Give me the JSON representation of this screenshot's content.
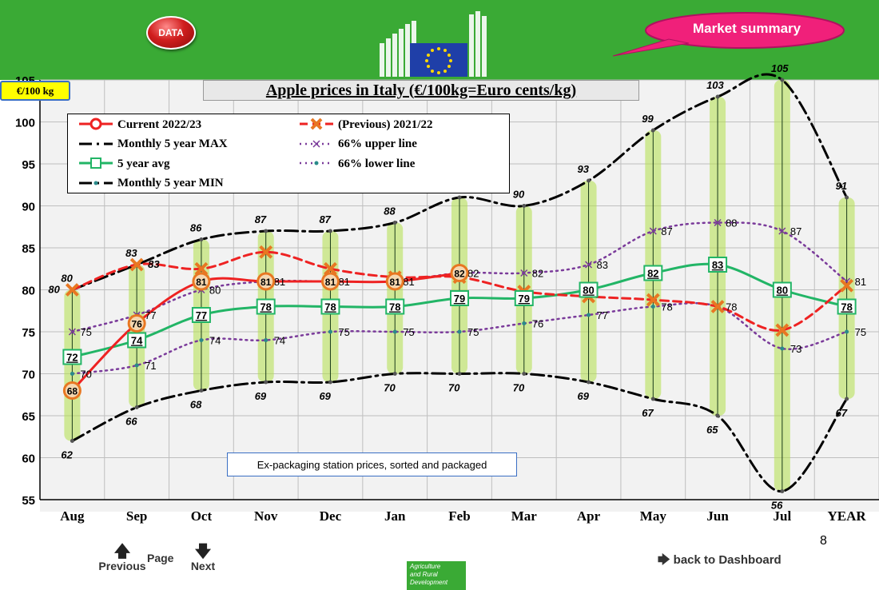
{
  "header": {
    "data_button": "DATA",
    "market_summary": "Market summary"
  },
  "unit_label": "€/100 kg",
  "note": "Ex-packaging station prices, sorted and packaged",
  "page_number": "8",
  "nav": {
    "previous": "Previous",
    "page": "Page",
    "next": "Next",
    "back": "back to Dashboard"
  },
  "footer_logo": [
    "Agriculture",
    "and Rural",
    "Development"
  ],
  "colors": {
    "banner": "#3aaa35",
    "current": "#ee2222",
    "previous": "#ee2222",
    "max_min": "#000000",
    "avg": "#22b566",
    "upper_lower": "#7a3a9a",
    "range_bar": "#b3e04a"
  },
  "icons": {
    "previous": "arrow-up-icon",
    "next": "arrow-down-icon",
    "back": "arrow-right-icon"
  },
  "chart_data": {
    "type": "line",
    "title": "Apple prices in Italy (€/100kg=Euro cents/kg)",
    "ylim": [
      55,
      105
    ],
    "yticks": [
      55,
      60,
      65,
      70,
      75,
      80,
      85,
      90,
      95,
      100,
      105
    ],
    "categories": [
      "Aug",
      "Sep",
      "Oct",
      "Nov",
      "Dec",
      "Jan",
      "Feb",
      "Mar",
      "Apr",
      "May",
      "Jun",
      "Jul",
      "YEAR"
    ],
    "grid": true,
    "legend_position": "top-left",
    "series": [
      {
        "name": "Current 2022/23",
        "values": [
          68,
          76,
          81,
          81,
          81,
          81,
          82,
          null,
          null,
          null,
          null,
          null,
          null
        ]
      },
      {
        "name": "(Previous) 2021/22",
        "values": [
          80,
          83,
          82.5,
          84.5,
          82.5,
          81.5,
          81.5,
          79.8,
          79.2,
          78.8,
          78,
          75.2,
          80.5
        ]
      },
      {
        "name": "Monthly 5 year MAX",
        "values": [
          80,
          83,
          86,
          87,
          87,
          88,
          91,
          90,
          93,
          99,
          103,
          105,
          91
        ]
      },
      {
        "name": "66% upper line",
        "values": [
          75,
          77,
          80,
          81,
          81,
          81,
          82,
          82,
          83,
          87,
          88,
          87,
          81
        ]
      },
      {
        "name": "5 year avg",
        "values": [
          72,
          74,
          77,
          78,
          78,
          78,
          79,
          79,
          80,
          82,
          83,
          80,
          78
        ]
      },
      {
        "name": "66% lower line",
        "values": [
          70,
          71,
          74,
          74,
          75,
          75,
          75,
          76,
          77,
          78,
          78,
          73,
          75
        ]
      },
      {
        "name": "Monthly 5 year MIN",
        "values": [
          62,
          66,
          68,
          69,
          69,
          70,
          70,
          70,
          69,
          67,
          65,
          56,
          67
        ]
      }
    ]
  }
}
